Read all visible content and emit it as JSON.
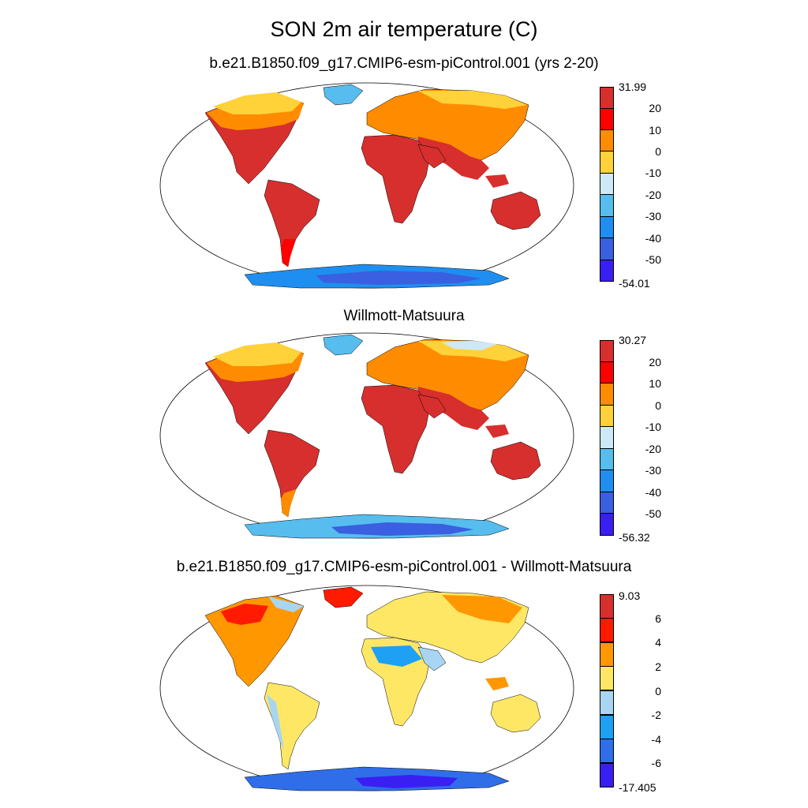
{
  "figure": {
    "title": "SON 2m air temperature (C)"
  },
  "panels": [
    {
      "title": "b.e21.B1850.f09_g17.CMIP6-esm-piControl.001 (yrs 2-20)",
      "colorbar": {
        "labels": [
          "31.99",
          "20",
          "10",
          "0",
          "-10",
          "-20",
          "-30",
          "-40",
          "-50",
          "-54.01"
        ],
        "colors": [
          "#d62f2d",
          "#ff0000",
          "#ff8c00",
          "#ffd23a",
          "#cfe8f7",
          "#56bdee",
          "#1e8ff0",
          "#3a5fe0",
          "#3a1ff2"
        ]
      }
    },
    {
      "title": "Willmott-Matsuura",
      "colorbar": {
        "labels": [
          "30.27",
          "20",
          "10",
          "0",
          "-10",
          "-20",
          "-30",
          "-40",
          "-50",
          "-56.32"
        ],
        "colors": [
          "#d62f2d",
          "#ff0000",
          "#ff8c00",
          "#ffd23a",
          "#cfe8f7",
          "#56bdee",
          "#1e8ff0",
          "#3a5fe0",
          "#3a1ff2"
        ]
      }
    },
    {
      "title": "b.e21.B1850.f09_g17.CMIP6-esm-piControl.001 - Willmott-Matsuura",
      "colorbar": {
        "labels": [
          "9.03",
          "6",
          "4",
          "2",
          "0",
          "-2",
          "-4",
          "-6",
          "-17.405"
        ],
        "colors": [
          "#d62f2d",
          "#ff1a00",
          "#ff9800",
          "#ffe766",
          "#a8d6f2",
          "#1ea0f5",
          "#2f6ee8",
          "#3a1ff2"
        ]
      }
    }
  ]
}
